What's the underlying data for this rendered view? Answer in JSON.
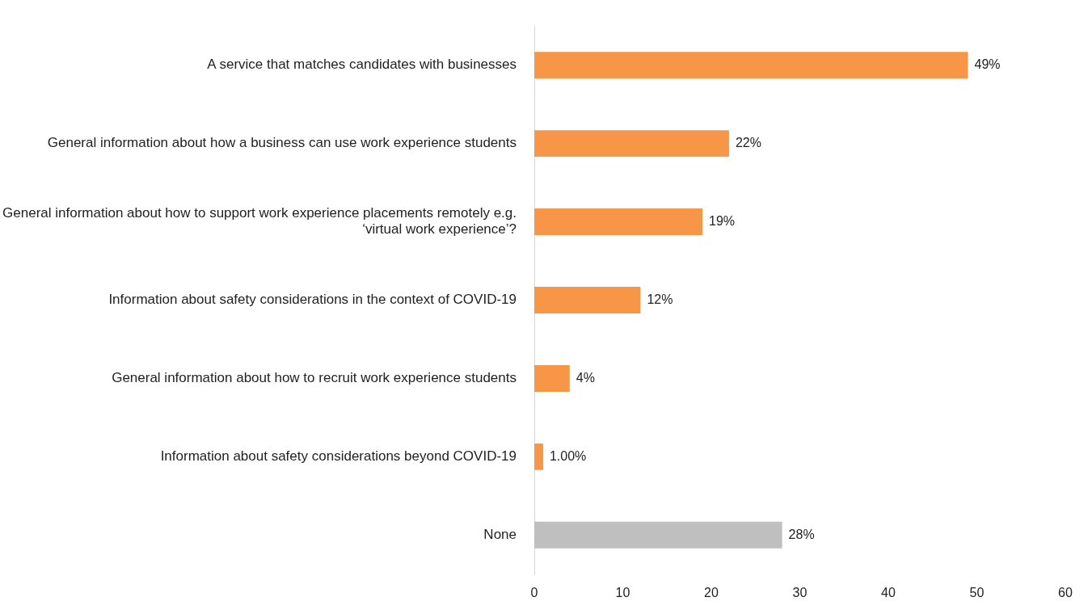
{
  "chart_data": {
    "type": "bar",
    "orientation": "horizontal",
    "categories": [
      "A service that matches candidates with businesses",
      "General information about how a business can use work experience students",
      "General information about how to support work experience placements remotely e.g. ‘virtual work experience’?",
      "Information about safety considerations in the context of COVID-19",
      "General information about how to recruit work experience students",
      "Information about safety considerations beyond COVID-19",
      "None"
    ],
    "values": [
      49,
      22,
      19,
      12,
      4,
      1,
      28
    ],
    "colors": [
      "#f79646",
      "#f79646",
      "#f79646",
      "#f79646",
      "#f79646",
      "#f79646",
      "#bfbfbf"
    ],
    "value_labels": [
      "49%",
      "22%",
      "19%",
      "12%",
      "4%",
      "1.00%",
      "28%"
    ],
    "xlim": [
      0,
      60
    ],
    "xticks": [
      0,
      10,
      20,
      30,
      40,
      50,
      60
    ],
    "grid": false,
    "legend": false
  }
}
